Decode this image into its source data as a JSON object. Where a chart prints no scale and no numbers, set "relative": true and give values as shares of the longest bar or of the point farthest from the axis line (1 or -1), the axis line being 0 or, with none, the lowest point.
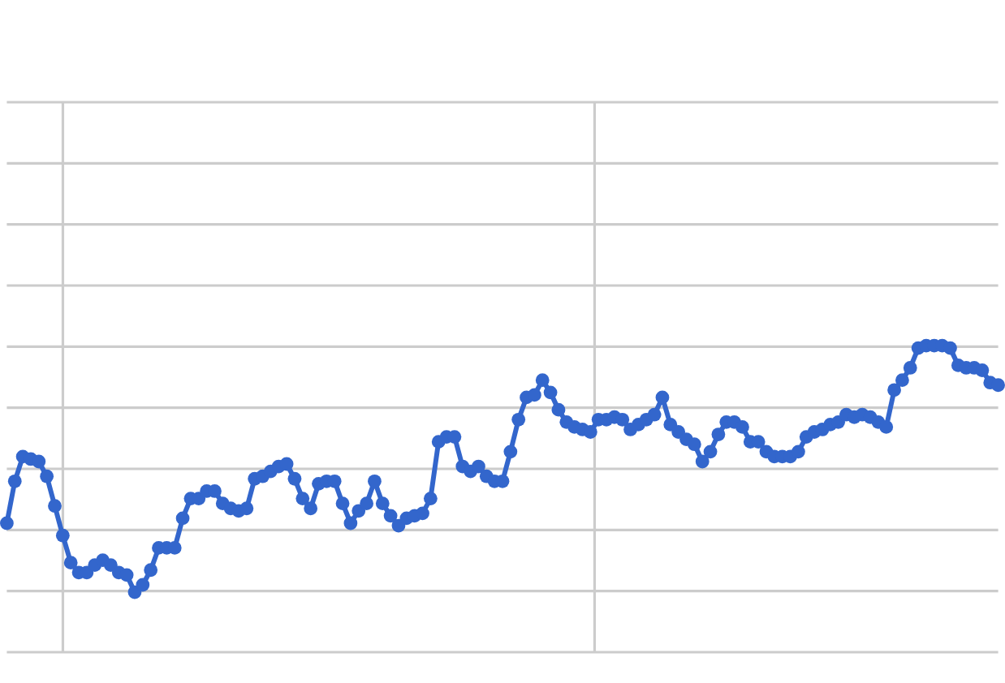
{
  "chart_data": {
    "type": "line",
    "relative": true,
    "color": "#3366cc",
    "marker": "circle",
    "line_style": "solid",
    "grid": true,
    "categories": [
      null,
      null,
      null,
      null,
      null,
      null,
      null,
      null,
      null,
      null,
      null,
      null,
      null,
      null,
      null,
      null,
      null,
      null,
      null,
      null,
      null,
      null,
      null,
      null,
      null,
      null,
      null,
      null,
      null,
      null,
      null,
      null,
      null,
      null,
      null,
      null,
      null,
      null,
      null,
      null,
      null,
      null,
      null,
      null,
      null,
      null,
      null,
      null,
      null,
      null,
      null,
      null,
      null,
      null,
      null,
      null,
      null,
      null,
      null,
      null,
      null,
      null,
      null,
      null,
      null,
      null,
      null,
      null,
      null,
      null,
      null,
      null,
      null,
      null,
      null,
      null,
      null,
      null,
      null,
      null,
      null,
      null,
      null,
      null,
      null,
      null,
      null,
      null,
      null,
      null,
      null,
      null,
      null,
      null,
      null,
      null,
      null,
      null,
      null,
      null,
      null,
      null,
      null,
      null,
      null,
      null,
      null,
      null,
      null,
      null,
      null,
      null,
      null,
      null,
      null,
      null,
      null,
      null,
      null,
      null,
      null,
      null,
      null,
      null,
      null
    ],
    "values": [
      0.28,
      0.45,
      0.55,
      0.54,
      0.53,
      0.47,
      0.35,
      0.23,
      0.12,
      0.08,
      0.08,
      0.11,
      0.13,
      0.11,
      0.08,
      0.07,
      0,
      0.03,
      0.09,
      0.18,
      0.18,
      0.18,
      0.3,
      0.38,
      0.38,
      0.41,
      0.41,
      0.36,
      0.34,
      0.33,
      0.34,
      0.46,
      0.47,
      0.49,
      0.51,
      0.52,
      0.46,
      0.38,
      0.34,
      0.44,
      0.45,
      0.45,
      0.36,
      0.28,
      0.33,
      0.36,
      0.45,
      0.36,
      0.31,
      0.27,
      0.3,
      0.31,
      0.32,
      0.38,
      0.61,
      0.63,
      0.63,
      0.51,
      0.49,
      0.51,
      0.47,
      0.45,
      0.45,
      0.57,
      0.7,
      0.79,
      0.8,
      0.86,
      0.81,
      0.74,
      0.69,
      0.67,
      0.66,
      0.65,
      0.7,
      0.7,
      0.71,
      0.7,
      0.66,
      0.68,
      0.7,
      0.72,
      0.79,
      0.68,
      0.65,
      0.62,
      0.6,
      0.53,
      0.57,
      0.64,
      0.69,
      0.69,
      0.67,
      0.61,
      0.61,
      0.57,
      0.55,
      0.55,
      0.55,
      0.57,
      0.63,
      0.65,
      0.66,
      0.68,
      0.69,
      0.72,
      0.71,
      0.72,
      0.71,
      0.69,
      0.67,
      0.82,
      0.86,
      0.91,
      0.99,
      1,
      1,
      1,
      0.99,
      0.92,
      0.91,
      0.91,
      0.9,
      0.85,
      0.84
    ]
  }
}
